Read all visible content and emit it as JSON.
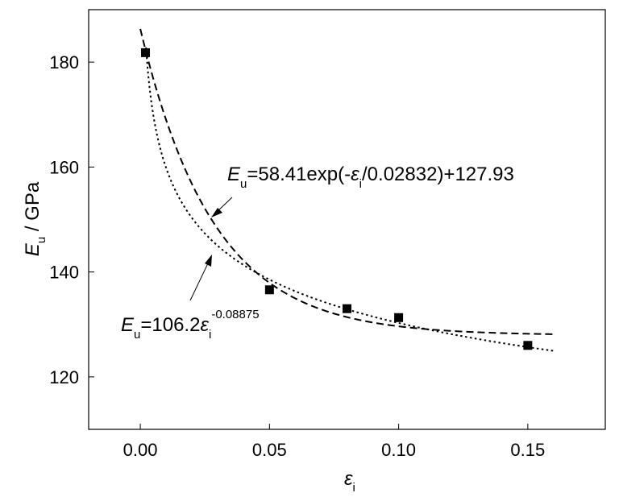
{
  "chart_data": {
    "type": "scatter",
    "xlim": [
      -0.02,
      0.18
    ],
    "ylim": [
      110,
      190
    ],
    "xticks": [
      0.0,
      0.05,
      0.1,
      0.15
    ],
    "xtick_labels": [
      "0.00",
      "0.05",
      "0.10",
      "0.15"
    ],
    "yticks": [
      120,
      140,
      160,
      180
    ],
    "ytick_labels": [
      "120",
      "140",
      "160",
      "180"
    ],
    "xlabel": {
      "main": "ε",
      "sub": "i"
    },
    "ylabel": {
      "main": "E",
      "sub": "u",
      "rest": " / GPa"
    },
    "grid": false,
    "points": [
      {
        "x": 0.002,
        "y": 181.8
      },
      {
        "x": 0.05,
        "y": 136.6
      },
      {
        "x": 0.08,
        "y": 133.0
      },
      {
        "x": 0.1,
        "y": 131.3
      },
      {
        "x": 0.15,
        "y": 126.0
      }
    ],
    "fits": [
      {
        "model": "exponential",
        "params": {
          "a": 58.41,
          "tau": 0.02832,
          "c": 127.93
        },
        "style": "dashed",
        "x_range": [
          0.0,
          0.16
        ],
        "label": {
          "E": "E",
          "u": "u",
          "eq": "=58.41exp(-",
          "eps": "ε",
          "i": "i",
          "tail": "/0.02832)+127.93"
        }
      },
      {
        "model": "power",
        "params": {
          "a": 106.2,
          "b": -0.08875
        },
        "style": "dotted",
        "x_range": [
          0.0022,
          0.16
        ],
        "label": {
          "E": "E",
          "u": "u",
          "eq": "=106.2",
          "eps": "ε",
          "i": "i",
          "exp": "-0.08875"
        }
      }
    ]
  }
}
